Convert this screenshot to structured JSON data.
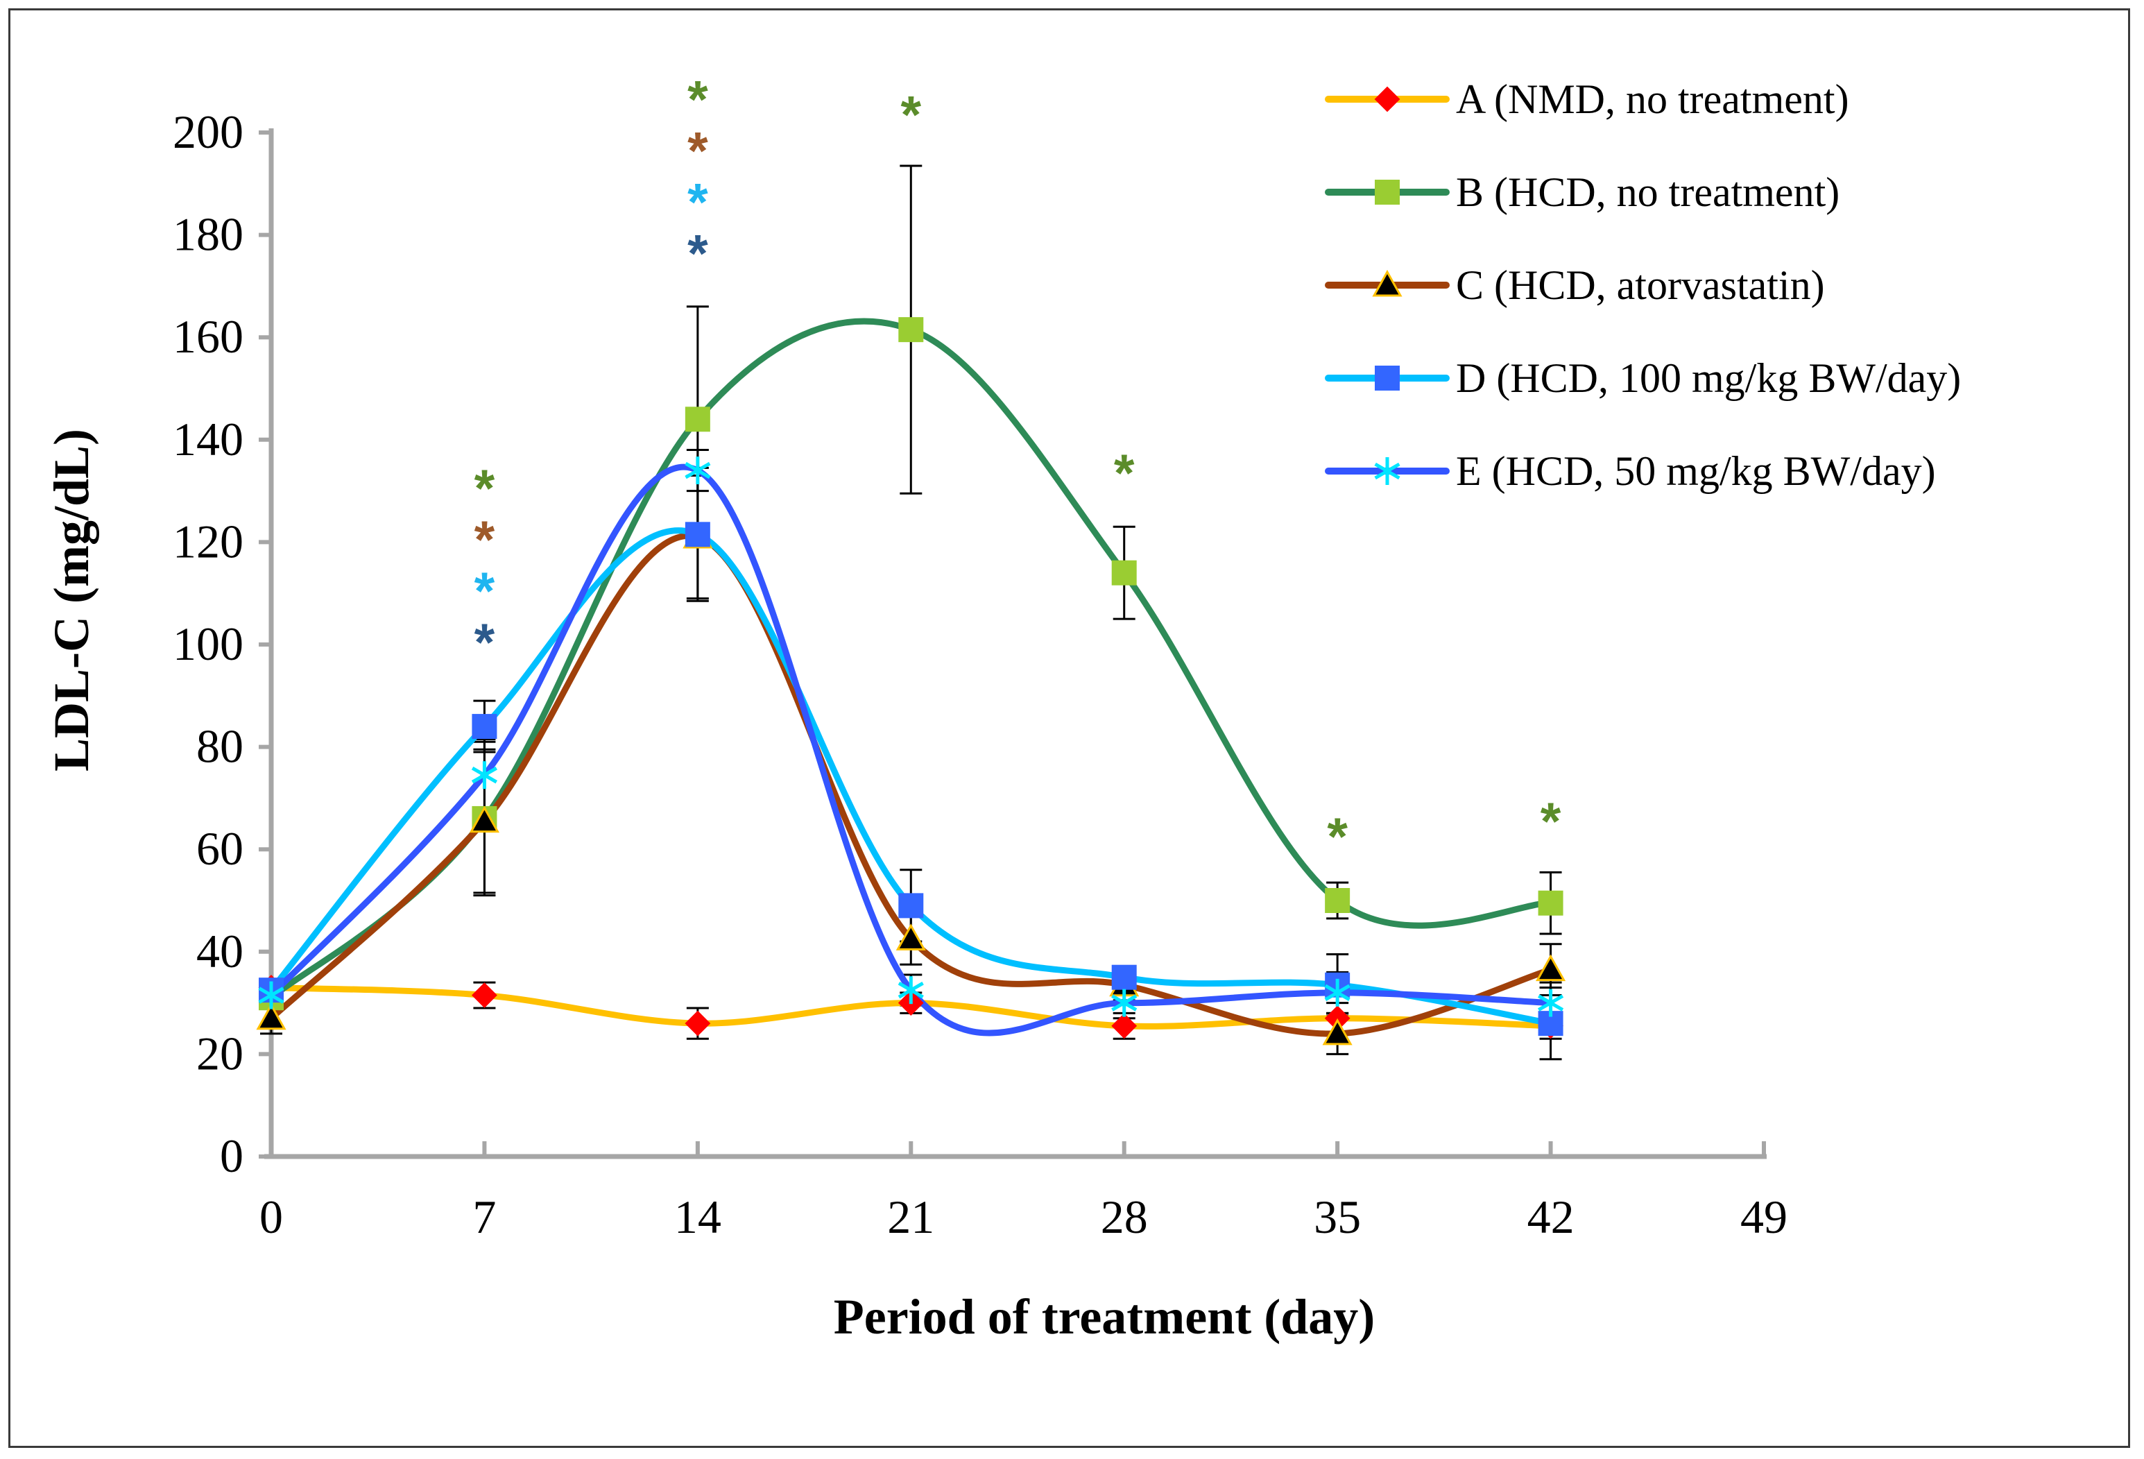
{
  "chart_data": {
    "type": "line",
    "xlabel": "Period of treatment (day)",
    "ylabel": "LDL-C (mg/dL)",
    "xlim": [
      0,
      49
    ],
    "ylim": [
      0,
      200
    ],
    "xticks": [
      0,
      7,
      14,
      21,
      28,
      35,
      42,
      49
    ],
    "yticks": [
      0,
      20,
      40,
      60,
      80,
      100,
      120,
      140,
      160,
      180,
      200
    ],
    "x": [
      0,
      7,
      14,
      21,
      28,
      35,
      42
    ],
    "series": [
      {
        "name": "A (NMD, no treatment)",
        "line_color": "#FFC000",
        "marker": "diamond",
        "marker_color": "#FF0000",
        "values": [
          33,
          31.5,
          26,
          30,
          25.5,
          27,
          25.5
        ],
        "errors": [
          0,
          2.5,
          3,
          2,
          2.5,
          3,
          2.5
        ]
      },
      {
        "name": "B (HCD, no treatment)",
        "line_color": "#2E8B57",
        "marker": "square",
        "marker_color": "#9ACD32",
        "values": [
          31,
          66,
          144,
          161.5,
          114,
          50,
          49.5
        ],
        "errors": [
          0,
          15,
          22,
          32,
          9,
          3.5,
          6
        ]
      },
      {
        "name": "C  (HCD, atorvastatin)",
        "line_color": "#A0400A",
        "marker": "triangle",
        "marker_color": "#000000",
        "values": [
          27,
          65.5,
          121,
          42.5,
          33.5,
          24,
          36.5
        ],
        "errors": [
          3,
          14,
          12,
          5,
          3,
          4,
          5
        ]
      },
      {
        "name": "D (HCD, 100 mg/kg BW/day)",
        "line_color": "#00BFFF",
        "marker": "square",
        "marker_color": "#3366FF",
        "values": [
          32.5,
          84,
          121.5,
          49,
          35,
          33.5,
          26
        ],
        "errors": [
          2,
          5,
          13,
          7,
          2,
          6,
          7
        ]
      },
      {
        "name": "E (HCD, 50 mg/kg BW/day)",
        "line_color": "#3355FF",
        "marker": "asterisk",
        "marker_color": "#00E5FF",
        "values": [
          31.5,
          74.5,
          134,
          32.5,
          30,
          32,
          30
        ],
        "errors": [
          2,
          7,
          4,
          3,
          3,
          4,
          4
        ]
      }
    ],
    "significance": [
      {
        "x": 7,
        "marks": [
          {
            "label": "*",
            "color": "#5B8C2A"
          },
          {
            "label": "*",
            "color": "#9E5A2A"
          },
          {
            "label": "*",
            "color": "#1FB5F0"
          },
          {
            "label": "*",
            "color": "#2C5A8C"
          }
        ]
      },
      {
        "x": 14,
        "marks": [
          {
            "label": "*",
            "color": "#5B8C2A"
          },
          {
            "label": "*",
            "color": "#9E5A2A"
          },
          {
            "label": "*",
            "color": "#1FB5F0"
          },
          {
            "label": "*",
            "color": "#2C5A8C"
          }
        ]
      },
      {
        "x": 21,
        "marks": [
          {
            "label": "*",
            "color": "#5B8C2A"
          }
        ]
      },
      {
        "x": 28,
        "marks": [
          {
            "label": "*",
            "color": "#5B8C2A"
          }
        ]
      },
      {
        "x": 35,
        "marks": [
          {
            "label": "*",
            "color": "#5B8C2A"
          }
        ]
      },
      {
        "x": 42,
        "marks": [
          {
            "label": "*",
            "color": "#5B8C2A"
          }
        ]
      }
    ],
    "axis_color": "#A6A6A6",
    "legend_position": "top-right",
    "grid": false
  }
}
